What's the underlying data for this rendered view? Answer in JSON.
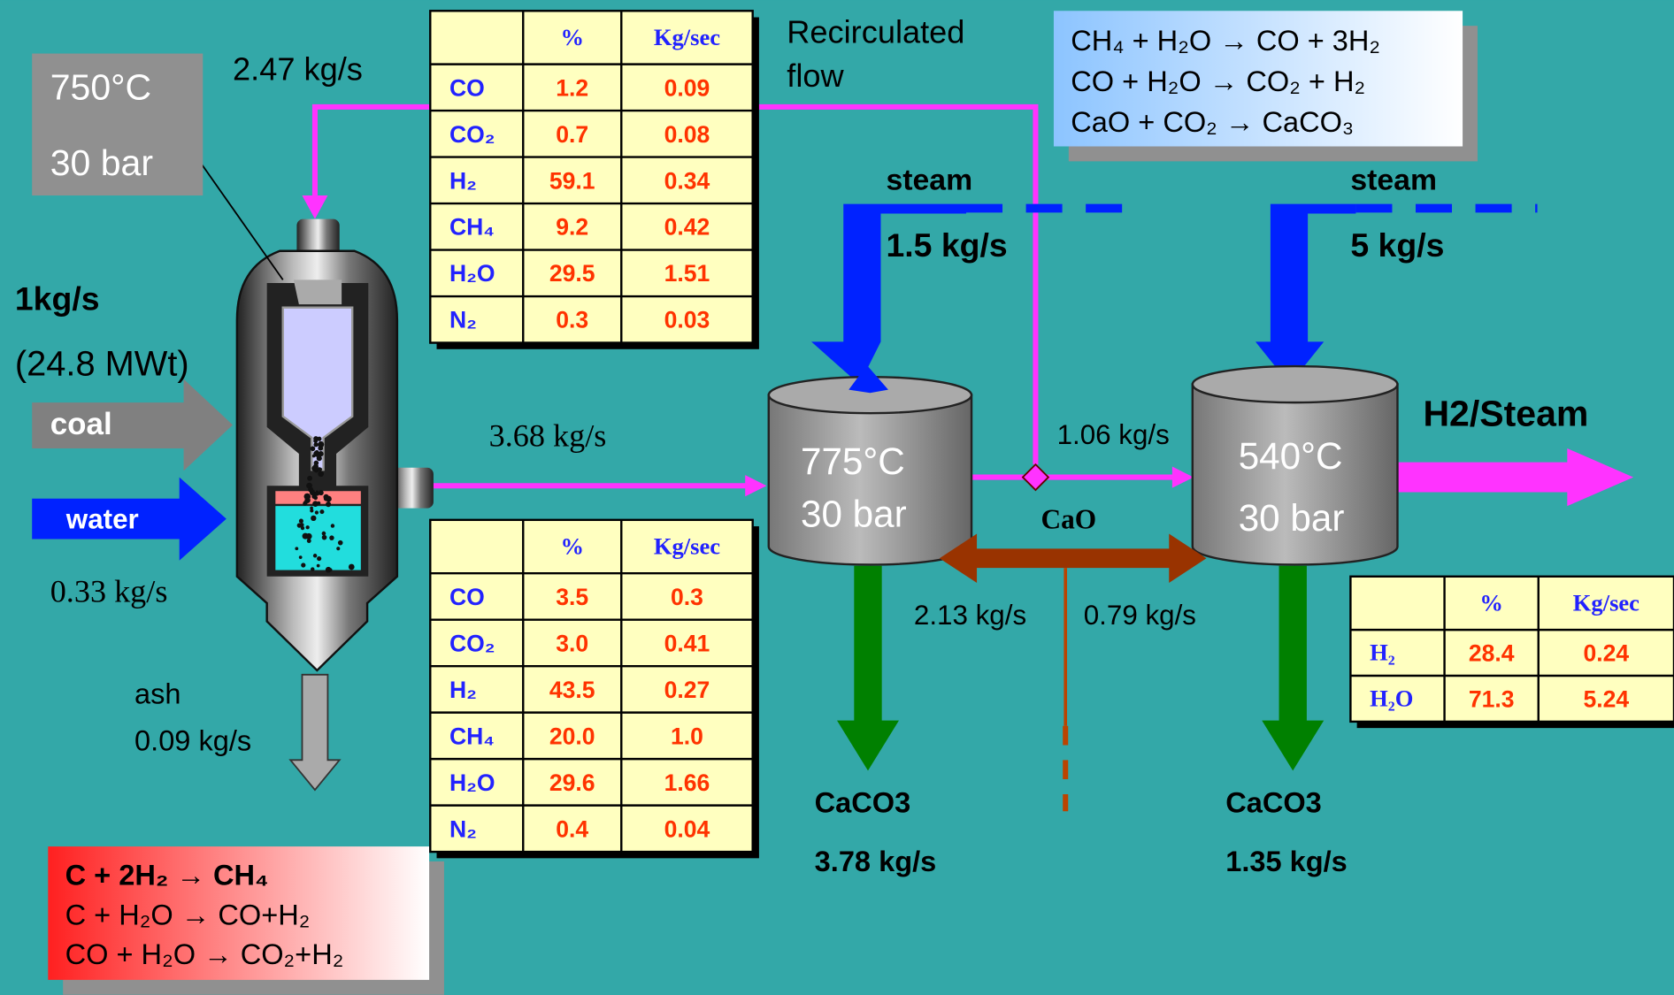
{
  "gasifier": {
    "temperature": "750°C",
    "pressure": "30 bar"
  },
  "coal_feed": {
    "rate": "1kg/s",
    "power": "(24.8 MWt)",
    "label": "coal"
  },
  "water_feed": {
    "label": "water",
    "rate": "0.33 kg/s"
  },
  "ash": {
    "label": "ash",
    "rate": "0.09 kg/s"
  },
  "recycle_rate": "2.47 kg/s",
  "recirculated_label": [
    "Recirculated",
    "flow"
  ],
  "gas_rate": "3.68 kg/s",
  "reactions_top": [
    "CH₄ + H₂O → CO + 3H₂",
    "CO + H₂O  →  CO₂ + H₂",
    "CaO + CO₂  →  CaCO₃"
  ],
  "reactions_bottom": [
    "C + 2H₂      → CH₄",
    "C + H₂O      → CO+H₂",
    "CO + H₂O   → CO₂+H₂"
  ],
  "reactor1": {
    "temperature": "775°C",
    "pressure": "30 bar",
    "steam_label": "steam",
    "steam_rate": "1.5 kg/s",
    "product": "CaCO3",
    "product_rate": "3.78 kg/s"
  },
  "reactor2": {
    "temperature": "540°C",
    "pressure": "30 bar",
    "steam_label": "steam",
    "steam_rate": "5 kg/s",
    "product": "CaCO3",
    "product_rate": "1.35 kg/s"
  },
  "split_rate": "1.06 kg/s",
  "cao": {
    "label": "CaO",
    "left_rate": "2.13 kg/s",
    "right_rate": "0.79 kg/s"
  },
  "product_label": "H2/Steam",
  "tables": {
    "recycle_gas": {
      "header": [
        "%",
        "Kg/sec"
      ],
      "rows": [
        [
          "CO",
          "1.2",
          "0.09"
        ],
        [
          "CO₂",
          "0.7",
          "0.08"
        ],
        [
          "H₂",
          "59.1",
          "0.34"
        ],
        [
          "CH₄",
          "9.2",
          "0.42"
        ],
        [
          "H₂O",
          "29.5",
          "1.51"
        ],
        [
          "N₂",
          "0.3",
          "0.03"
        ]
      ]
    },
    "gasifier_gas": {
      "header": [
        "%",
        "Kg/sec"
      ],
      "rows": [
        [
          "CO",
          "3.5",
          "0.3"
        ],
        [
          "CO₂",
          "3.0",
          "0.41"
        ],
        [
          "H₂",
          "43.5",
          "0.27"
        ],
        [
          "CH₄",
          "20.0",
          "1.0"
        ],
        [
          "H₂O",
          "29.6",
          "1.66"
        ],
        [
          "N₂",
          "0.4",
          "0.04"
        ]
      ]
    },
    "product_gas": {
      "header": [
        "%",
        "Kg/sec"
      ],
      "rows": [
        [
          "H₂",
          "28.4",
          "0.24"
        ],
        [
          "H₂O",
          "71.3",
          "5.24"
        ]
      ]
    }
  }
}
